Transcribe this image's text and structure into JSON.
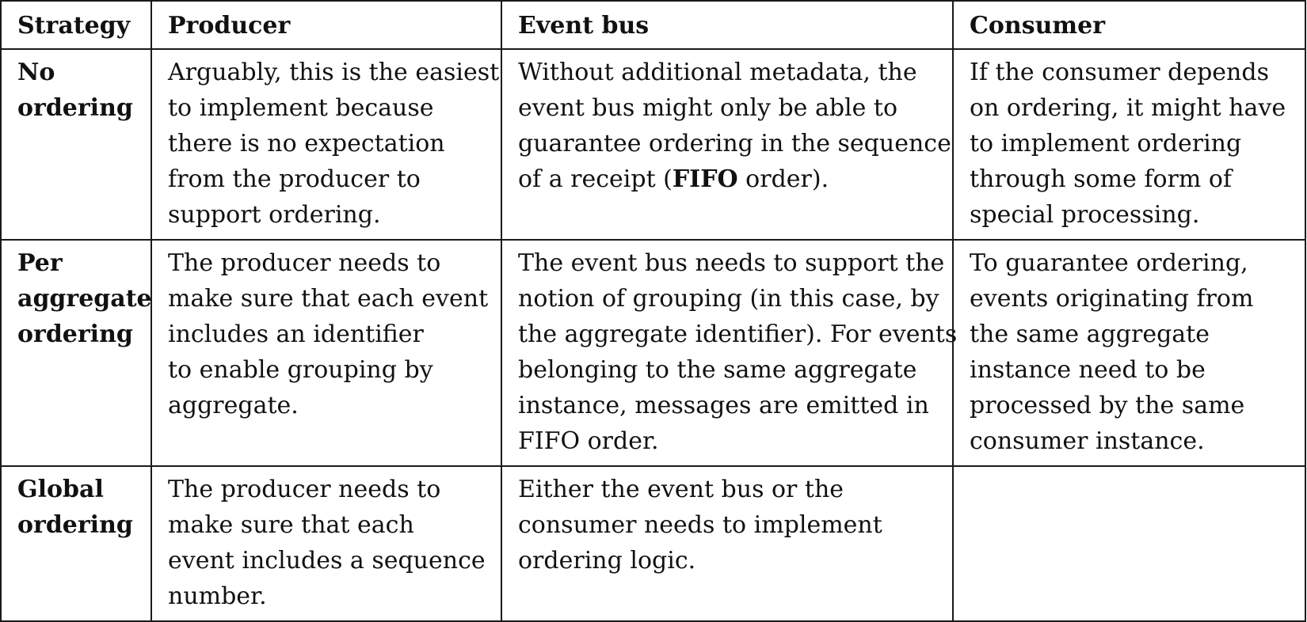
{
  "table": {
    "headers": [
      "Strategy",
      "Producer",
      "Event bus",
      "Consumer"
    ],
    "rows": [
      {
        "strategy": [
          "No",
          "ordering"
        ],
        "producer": [
          "Arguably, this is the easiest",
          "to implement because",
          "there is no expectation",
          "from the producer to",
          "support ordering."
        ],
        "event_bus": {
          "lines": [
            "Without additional metadata, the",
            "event bus might only be able to",
            "guarantee ordering in the sequence"
          ],
          "last_prefix": "of a receipt (",
          "last_bold": "FIFO",
          "last_suffix": " order)."
        },
        "consumer": [
          "If the consumer depends",
          "on ordering, it might have",
          "to implement ordering",
          "through some form of",
          "special processing."
        ]
      },
      {
        "strategy": [
          "Per",
          "aggregate",
          "ordering"
        ],
        "producer": [
          "The producer needs to",
          "make sure that each event",
          "includes an identifier",
          "to enable grouping by",
          "aggregate."
        ],
        "event_bus": [
          "The event bus needs to support the",
          "notion of grouping (in this case, by",
          "the aggregate identifier). For events",
          "belonging to the same aggregate",
          "instance, messages are emitted in",
          "FIFO order."
        ],
        "consumer": [
          "To guarantee ordering,",
          "events originating from",
          "the same aggregate",
          "instance need to be",
          "processed by the same",
          "consumer instance."
        ]
      },
      {
        "strategy": [
          "Global",
          "ordering"
        ],
        "producer": [
          "The producer needs to",
          "make sure that each",
          "event includes a sequence",
          "number."
        ],
        "event_bus": [
          "Either the event bus or the",
          "consumer needs to implement",
          "ordering logic."
        ],
        "consumer": []
      }
    ]
  }
}
